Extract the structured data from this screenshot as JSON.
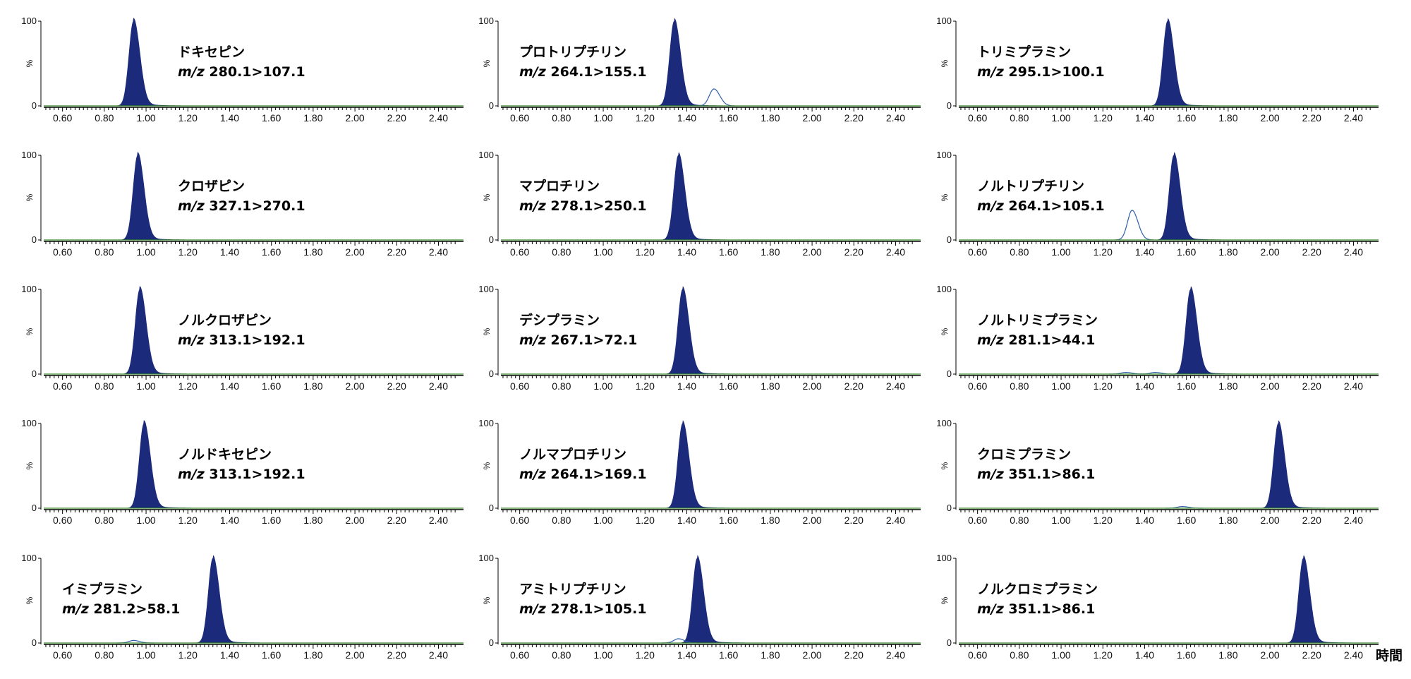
{
  "chart_data": {
    "type": "area",
    "x_unit_label": "時間",
    "x_ticks": [
      "0.60",
      "0.80",
      "1.00",
      "1.20",
      "1.40",
      "1.60",
      "1.80",
      "2.00",
      "2.20",
      "2.40"
    ],
    "xlim": [
      0.51,
      2.52
    ],
    "y_ticks": [
      "0",
      "100"
    ],
    "y_mid_label": "%",
    "ylim": [
      0,
      100
    ],
    "fill_color": "#1b2a7a",
    "outline_color": "#2e5fa8",
    "baseline_color": "#3b8a2c",
    "panels": [
      {
        "name": "ドキセピン",
        "mz_prefix": "m/z",
        "transition": "280.1>107.1",
        "peak_rt": 0.94,
        "peak_height": 100,
        "minor_peaks": []
      },
      {
        "name": "プロトリプチリン",
        "mz_prefix": "m/z",
        "transition": "264.1>155.1",
        "peak_rt": 1.34,
        "peak_height": 100,
        "minor_peaks": [
          {
            "rt": 1.53,
            "height": 20
          }
        ]
      },
      {
        "name": "トリミプラミン",
        "mz_prefix": "m/z",
        "transition": "295.1>100.1",
        "peak_rt": 1.51,
        "peak_height": 100,
        "minor_peaks": []
      },
      {
        "name": "クロザピン",
        "mz_prefix": "m/z",
        "transition": "327.1>270.1",
        "peak_rt": 0.96,
        "peak_height": 100,
        "minor_peaks": []
      },
      {
        "name": "マプロチリン",
        "mz_prefix": "m/z",
        "transition": "278.1>250.1",
        "peak_rt": 1.36,
        "peak_height": 100,
        "minor_peaks": []
      },
      {
        "name": "ノルトリプチリン",
        "mz_prefix": "m/z",
        "transition": "264.1>105.1",
        "peak_rt": 1.54,
        "peak_height": 100,
        "minor_peaks": [
          {
            "rt": 1.34,
            "height": 35
          }
        ]
      },
      {
        "name": "ノルクロザピン",
        "mz_prefix": "m/z",
        "transition": "313.1>192.1",
        "peak_rt": 0.97,
        "peak_height": 100,
        "minor_peaks": []
      },
      {
        "name": "デシプラミン",
        "mz_prefix": "m/z",
        "transition": "267.1>72.1",
        "peak_rt": 1.38,
        "peak_height": 100,
        "minor_peaks": []
      },
      {
        "name": "ノルトリミプラミン",
        "mz_prefix": "m/z",
        "transition": "281.1>44.1",
        "peak_rt": 1.62,
        "peak_height": 100,
        "minor_peaks": [
          {
            "rt": 1.31,
            "height": 2
          },
          {
            "rt": 1.45,
            "height": 2
          }
        ]
      },
      {
        "name": "ノルドキセピン",
        "mz_prefix": "m/z",
        "transition": "313.1>192.1",
        "peak_rt": 0.99,
        "peak_height": 100,
        "minor_peaks": []
      },
      {
        "name": "ノルマプロチリン",
        "mz_prefix": "m/z",
        "transition": "264.1>169.1",
        "peak_rt": 1.38,
        "peak_height": 100,
        "minor_peaks": []
      },
      {
        "name": "クロミプラミン",
        "mz_prefix": "m/z",
        "transition": "351.1>86.1",
        "peak_rt": 2.04,
        "peak_height": 100,
        "minor_peaks": [
          {
            "rt": 1.58,
            "height": 2
          }
        ]
      },
      {
        "name": "イミプラミン",
        "mz_prefix": "m/z",
        "transition": "281.2>58.1",
        "peak_rt": 1.32,
        "peak_height": 100,
        "minor_peaks": [
          {
            "rt": 0.94,
            "height": 3
          }
        ]
      },
      {
        "name": "アミトリプチリン",
        "mz_prefix": "m/z",
        "transition": "278.1>105.1",
        "peak_rt": 1.45,
        "peak_height": 100,
        "minor_peaks": [
          {
            "rt": 1.36,
            "height": 5
          }
        ]
      },
      {
        "name": "ノルクロミプラミン",
        "mz_prefix": "m/z",
        "transition": "351.1>86.1",
        "peak_rt": 2.16,
        "peak_height": 100,
        "minor_peaks": []
      }
    ]
  }
}
